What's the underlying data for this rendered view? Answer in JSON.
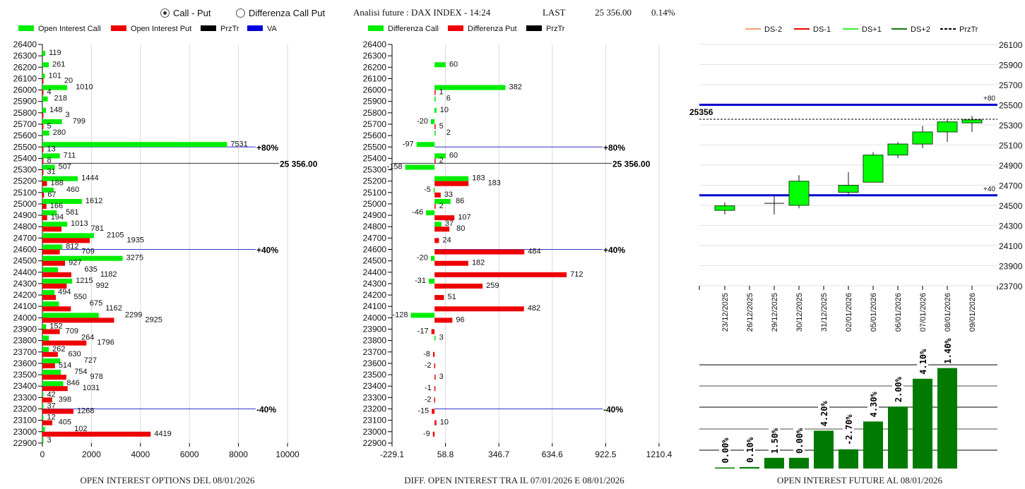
{
  "header": {
    "radio_call_put": "Call - Put",
    "radio_diff": "Differenza Call Put",
    "selected": "Call - Put",
    "analysis_title": "Analisi future : DAX INDEX - 14:24",
    "last_label": "LAST",
    "last_value": "25 356.00",
    "change": "0.14%"
  },
  "colors": {
    "call": "#00ee00",
    "put": "#ee0000",
    "przTr": "#000000",
    "va": "#0000dd",
    "future_bar": "#007a00",
    "candle": "#00ff00"
  },
  "chart_data": [
    {
      "type": "bar",
      "orientation": "horizontal",
      "title": "OPEN INTEREST OPTIONS DEL 08/01/2026",
      "legend": [
        "Open Interest Call",
        "Open Interest Put",
        "PrzTr",
        "VA"
      ],
      "xlim": [
        0,
        10000
      ],
      "xticks": [
        "0",
        "2000",
        "4000",
        "6000",
        "8000",
        "10000"
      ],
      "categories": [
        26400,
        26300,
        26200,
        26100,
        26000,
        25900,
        25800,
        25700,
        25600,
        25500,
        25400,
        25300,
        25200,
        25100,
        25000,
        24900,
        24800,
        24700,
        24600,
        24500,
        24400,
        24300,
        24200,
        24100,
        24000,
        23900,
        23800,
        23700,
        23600,
        23500,
        23400,
        23300,
        23200,
        23100,
        23000,
        22900
      ],
      "series": [
        {
          "name": "Open Interest Call",
          "values": [
            null,
            119,
            261,
            101,
            1010,
            218,
            148,
            799,
            280,
            7531,
            711,
            507,
            1444,
            460,
            1612,
            581,
            1013,
            2105,
            812,
            3275,
            635,
            1215,
            494,
            675,
            2299,
            152,
            264,
            262,
            727,
            754,
            846,
            42,
            37,
            12,
            102,
            3
          ]
        },
        {
          "name": "Open Interest Put",
          "values": [
            null,
            null,
            null,
            20,
            4,
            null,
            3,
            5,
            null,
            13,
            8,
            31,
            188,
            67,
            166,
            194,
            781,
            1935,
            709,
            927,
            1182,
            992,
            550,
            1162,
            2925,
            709,
            1796,
            630,
            514,
            978,
            1031,
            398,
            1268,
            405,
            4419,
            null
          ]
        }
      ],
      "przTr": {
        "value": 25356,
        "label": "25 356.00"
      },
      "va_lines": [
        {
          "strike": 25500,
          "label": "+80%"
        },
        {
          "strike": 24600,
          "label": "+40%"
        },
        {
          "strike": 23200,
          "label": "-40%"
        }
      ]
    },
    {
      "type": "bar",
      "orientation": "horizontal",
      "title": "DIFF. OPEN INTEREST TRA IL 07/01/2026 E 08/01/2026",
      "legend": [
        "Differenza Call",
        "Differenza Put",
        "PrzTr"
      ],
      "xlim": [
        -229.1,
        1210.4
      ],
      "xticks": [
        "-229.1",
        "58.8",
        "346.7",
        "634.6",
        "922.5",
        "1210.4"
      ],
      "categories": [
        26400,
        26300,
        26200,
        26100,
        26000,
        25900,
        25800,
        25700,
        25600,
        25500,
        25400,
        25300,
        25200,
        25100,
        25000,
        24900,
        24800,
        24700,
        24600,
        24500,
        24400,
        24300,
        24200,
        24100,
        24000,
        23900,
        23800,
        23700,
        23600,
        23500,
        23400,
        23300,
        23200,
        23100,
        23000,
        22900
      ],
      "series": [
        {
          "name": "Differenza Call",
          "values": [
            null,
            null,
            60,
            null,
            382,
            6,
            10,
            -20,
            2,
            -97,
            60,
            -158,
            183,
            -5,
            86,
            -46,
            37,
            null,
            null,
            -20,
            null,
            -31,
            null,
            null,
            -128,
            null,
            3,
            null,
            null,
            null,
            null,
            null,
            null,
            null,
            null,
            null
          ]
        },
        {
          "name": "Differenza Put",
          "values": [
            null,
            null,
            null,
            null,
            1,
            null,
            null,
            5,
            null,
            null,
            2,
            null,
            183,
            33,
            2,
            107,
            80,
            24,
            484,
            182,
            712,
            259,
            51,
            482,
            96,
            -17,
            null,
            -8,
            -2,
            3,
            -1,
            -2,
            -15,
            10,
            -9,
            null
          ]
        }
      ],
      "przTr": {
        "value": 25356,
        "label": "25 356.00"
      },
      "va_lines": [
        {
          "strike": 25500,
          "label": "+80%"
        },
        {
          "strike": 24600,
          "label": "+40%"
        },
        {
          "strike": 23200,
          "label": "-40%"
        }
      ]
    },
    {
      "type": "candlestick",
      "legend": [
        "DS-2",
        "DS-1",
        "DS+1",
        "DS+2",
        "PrzTr"
      ],
      "ylim": [
        23700,
        26100
      ],
      "yticks": [
        "26100",
        "25900",
        "25700",
        "25500",
        "25300",
        "25100",
        "24900",
        "24700",
        "24500",
        "24300",
        "24100",
        "23900",
        "23700"
      ],
      "dates": [
        "23/12/2025",
        "26/12/2025",
        "29/12/2025",
        "30/12/2025",
        "31/12/2025",
        "02/01/2026",
        "05/01/2026",
        "06/01/2026",
        "07/01/2026",
        "08/01/2026",
        "09/01/2026"
      ],
      "ohlc": [
        {
          "o": 24450,
          "h": 24530,
          "l": 24410,
          "c": 24495
        },
        null,
        {
          "o": 24520,
          "h": 24600,
          "l": 24410,
          "c": 24520
        },
        {
          "o": 24500,
          "h": 24800,
          "l": 24470,
          "c": 24740
        },
        null,
        {
          "o": 24630,
          "h": 24830,
          "l": 24600,
          "c": 24700
        },
        {
          "o": 24730,
          "h": 25030,
          "l": 24730,
          "c": 25000
        },
        {
          "o": 25000,
          "h": 25130,
          "l": 24970,
          "c": 25110
        },
        {
          "o": 25110,
          "h": 25290,
          "l": 25070,
          "c": 25230
        },
        {
          "o": 25230,
          "h": 25350,
          "l": 25130,
          "c": 25330
        },
        {
          "o": 25320,
          "h": 25390,
          "l": 25230,
          "c": 25350
        }
      ],
      "przTr": {
        "value": 25356,
        "label": "25356"
      },
      "levels": [
        {
          "value": 25500,
          "label": "+80"
        },
        {
          "value": 24600,
          "label": "+40"
        }
      ]
    },
    {
      "type": "bar",
      "title": "OPEN INTEREST FUTURE AL 08/01/2026",
      "labels": [
        "0.00%",
        "0.10%",
        "1.50%",
        "0.00%",
        "4.20%",
        "-2.70%",
        "4.30%",
        "2.00%",
        "4.10%",
        "1.40%"
      ],
      "relative_values": [
        0.03,
        0.07,
        0.5,
        0.5,
        1.77,
        0.9,
        2.2,
        2.9,
        4.2,
        4.7
      ]
    }
  ]
}
